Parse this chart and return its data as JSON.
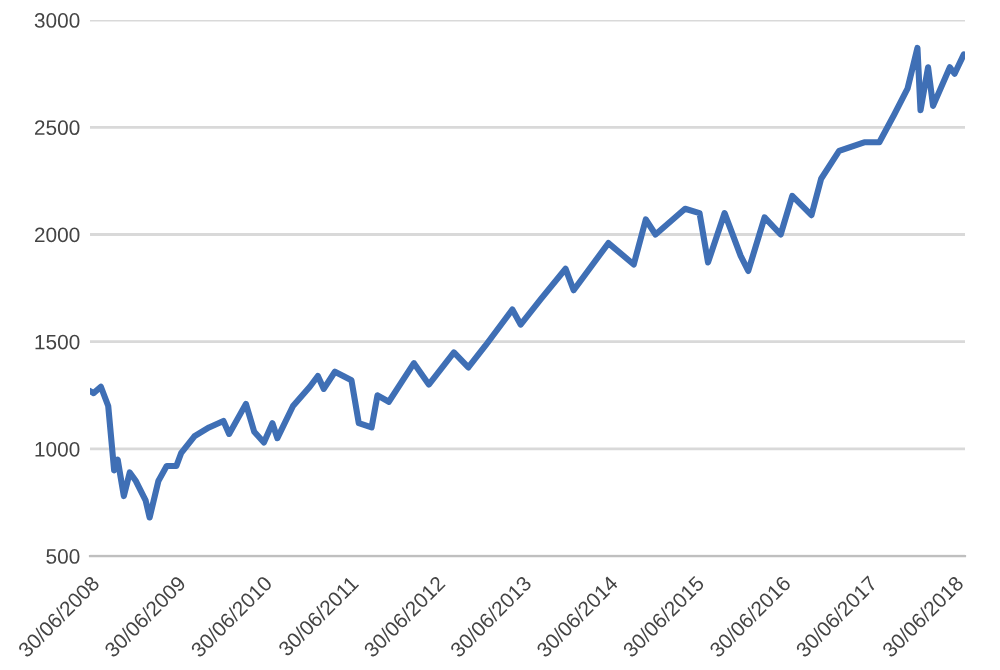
{
  "chart_data": {
    "type": "line",
    "x": [
      "2008-06-30",
      "2008-07-15",
      "2008-08-15",
      "2008-09-15",
      "2008-10-10",
      "2008-10-25",
      "2008-11-20",
      "2008-12-15",
      "2009-01-10",
      "2009-02-20",
      "2009-03-09",
      "2009-04-15",
      "2009-05-20",
      "2009-06-30",
      "2009-07-20",
      "2009-09-15",
      "2009-11-15",
      "2010-01-15",
      "2010-02-08",
      "2010-04-20",
      "2010-05-25",
      "2010-07-05",
      "2010-08-10",
      "2010-08-31",
      "2010-11-05",
      "2011-01-15",
      "2011-02-18",
      "2011-03-15",
      "2011-05-01",
      "2011-07-10",
      "2011-08-10",
      "2011-10-03",
      "2011-10-28",
      "2011-12-15",
      "2012-03-30",
      "2012-06-01",
      "2012-09-15",
      "2012-11-15",
      "2013-01-25",
      "2013-05-20",
      "2013-06-24",
      "2013-09-18",
      "2013-12-31",
      "2014-02-03",
      "2014-06-30",
      "2014-10-15",
      "2014-12-05",
      "2015-01-15",
      "2015-05-20",
      "2015-07-20",
      "2015-08-25",
      "2015-11-03",
      "2016-01-10",
      "2016-02-11",
      "2016-04-20",
      "2016-06-27",
      "2016-08-15",
      "2016-11-04",
      "2016-12-15",
      "2017-03-01",
      "2017-06-15",
      "2017-08-18",
      "2017-10-20",
      "2017-12-15",
      "2018-01-26",
      "2018-02-08",
      "2018-03-12",
      "2018-04-02",
      "2018-06-12",
      "2018-07-02",
      "2018-08-10"
    ],
    "series": [
      {
        "color": "#3f6fb5",
        "values": [
          1270,
          1260,
          1290,
          1200,
          900,
          950,
          780,
          890,
          850,
          760,
          680,
          850,
          920,
          920,
          980,
          1060,
          1100,
          1130,
          1070,
          1210,
          1080,
          1030,
          1120,
          1050,
          1200,
          1290,
          1340,
          1280,
          1360,
          1320,
          1120,
          1100,
          1250,
          1220,
          1400,
          1300,
          1450,
          1380,
          1480,
          1650,
          1580,
          1700,
          1840,
          1740,
          1960,
          1860,
          2070,
          2000,
          2120,
          2100,
          1870,
          2100,
          1900,
          1830,
          2080,
          2000,
          2180,
          2090,
          2260,
          2390,
          2430,
          2430,
          2560,
          2680,
          2870,
          2580,
          2780,
          2600,
          2780,
          2750,
          2840
        ]
      }
    ],
    "xlim": [
      "2008-06-30",
      "2018-08-15"
    ],
    "xticks": [
      {
        "value": "2008-06-30",
        "label": "30/06/2008"
      },
      {
        "value": "2009-06-30",
        "label": "30/06/2009"
      },
      {
        "value": "2010-06-30",
        "label": "30/06/2010"
      },
      {
        "value": "2011-06-30",
        "label": "30/06/2011"
      },
      {
        "value": "2012-06-30",
        "label": "30/06/2012"
      },
      {
        "value": "2013-06-30",
        "label": "30/06/2013"
      },
      {
        "value": "2014-06-30",
        "label": "30/06/2014"
      },
      {
        "value": "2015-06-30",
        "label": "30/06/2015"
      },
      {
        "value": "2016-06-30",
        "label": "30/06/2016"
      },
      {
        "value": "2017-06-30",
        "label": "30/06/2017"
      },
      {
        "value": "2018-06-30",
        "label": "30/06/2018"
      }
    ],
    "ylim": [
      500,
      3000
    ],
    "yticks": [
      500,
      1000,
      1500,
      2000,
      2500,
      3000
    ],
    "grid": "y",
    "marker": "none",
    "line_style": "solid"
  }
}
